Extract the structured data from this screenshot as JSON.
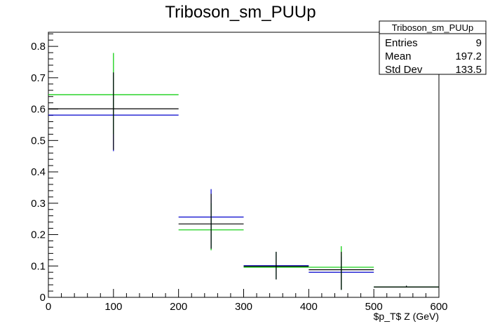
{
  "chart_data": {
    "type": "scatter",
    "title": "Triboson_sm_PUUp",
    "xlabel": "$p_T$ Z (GeV)",
    "ylabel": "",
    "xlim": [
      0,
      600
    ],
    "ylim": [
      0,
      0.845
    ],
    "xticks": [
      0,
      100,
      200,
      300,
      400,
      500,
      600
    ],
    "xtick_labels": [
      "0",
      "100",
      "200",
      "300",
      "400",
      "500",
      "600"
    ],
    "yticks": [
      0,
      0.1,
      0.2,
      0.3,
      0.4,
      0.5,
      0.6,
      0.7,
      0.8
    ],
    "ytick_labels": [
      "0",
      "0.1",
      "0.2",
      "0.3",
      "0.4",
      "0.5",
      "0.6",
      "0.7",
      "0.8"
    ],
    "bins": [
      [
        0,
        200
      ],
      [
        200,
        300
      ],
      [
        300,
        400
      ],
      [
        400,
        500
      ],
      [
        500,
        600
      ]
    ],
    "series": [
      {
        "color": "#0000cc",
        "values": [
          0.581,
          0.256,
          0.101,
          0.08,
          0.033
        ],
        "err_low": [
          0.466,
          0.155,
          0.057,
          0.024,
          0.033
        ],
        "err_high": [
          0.717,
          0.345,
          0.145,
          0.13,
          0.037
        ]
      },
      {
        "color": "#00cc00",
        "values": [
          0.646,
          0.215,
          0.096,
          0.096,
          0.033
        ],
        "err_low": [
          0.52,
          0.15,
          0.057,
          0.024,
          0.033
        ],
        "err_high": [
          0.779,
          0.3,
          0.145,
          0.163,
          0.037
        ]
      },
      {
        "color": "#000000",
        "values": [
          0.601,
          0.234,
          0.099,
          0.088,
          0.033
        ],
        "err_low": [
          0.47,
          0.155,
          0.057,
          0.024,
          0.033
        ],
        "err_high": [
          0.717,
          0.33,
          0.145,
          0.145,
          0.037
        ]
      }
    ],
    "stats": {
      "name": "Triboson_sm_PUUp",
      "rows": [
        {
          "label": "Entries",
          "value": "9"
        },
        {
          "label": "Mean",
          "value": "197.2"
        },
        {
          "label": "Std Dev",
          "value": "133.5"
        }
      ]
    },
    "grid": false,
    "legend": "top-right"
  }
}
